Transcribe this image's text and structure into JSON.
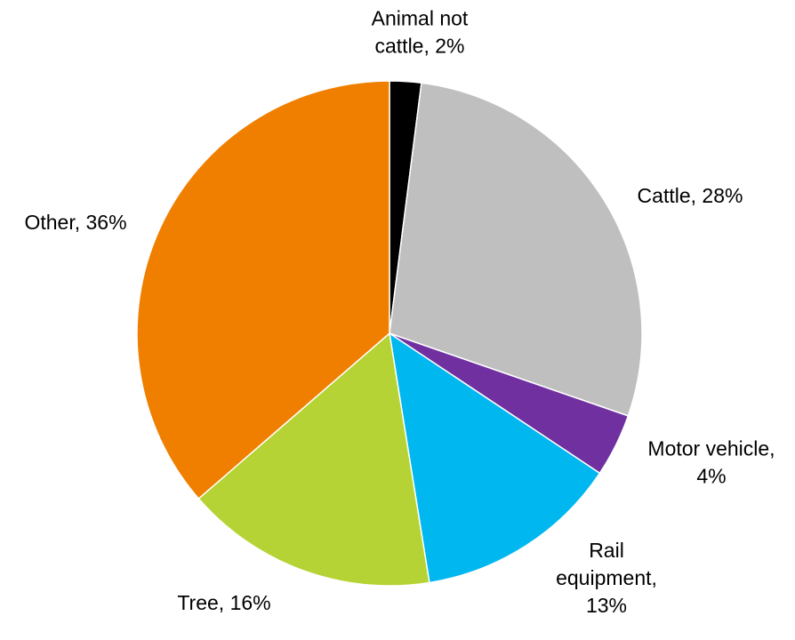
{
  "chart_data": {
    "type": "pie",
    "title": "",
    "start_angle_deg": 0,
    "direction": "clockwise",
    "slices": [
      {
        "name": "Animal not cattle",
        "value": 2,
        "color": "#000000",
        "label_lines": [
          "Animal not",
          "cattle, 2%"
        ]
      },
      {
        "name": "Cattle",
        "value": 28,
        "color": "#bfbfbf",
        "label_lines": [
          "Cattle, 28%"
        ]
      },
      {
        "name": "Motor vehicle",
        "value": 4,
        "color": "#7030a0",
        "label_lines": [
          "Motor vehicle,",
          "4%"
        ]
      },
      {
        "name": "Rail equipment",
        "value": 13,
        "color": "#00b7ef",
        "label_lines": [
          "Rail",
          "equipment,",
          "13%"
        ]
      },
      {
        "name": "Tree",
        "value": 16,
        "color": "#b5d334",
        "label_lines": [
          "Tree, 16%"
        ]
      },
      {
        "name": "Other",
        "value": 36,
        "color": "#f07f00",
        "label_lines": [
          "Other, 36%"
        ]
      }
    ]
  }
}
